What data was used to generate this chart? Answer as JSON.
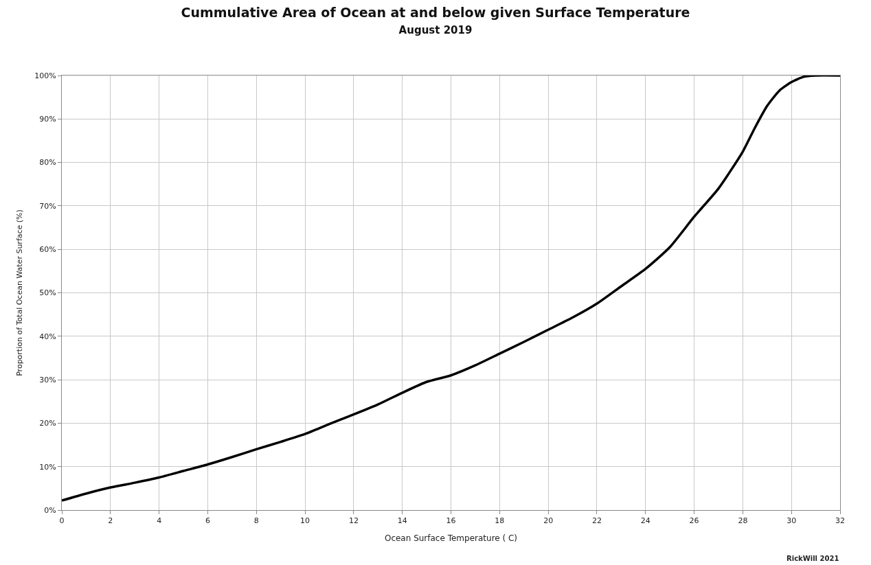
{
  "chart_data": {
    "type": "line",
    "title": "Cummulative Area of Ocean at and below given Surface Temperature",
    "subtitle": "August 2019",
    "xlabel": "Ocean Surface Temperature ( C)",
    "ylabel": "Proportion of Total Ocean Water Surface (%)",
    "x": [
      0,
      1,
      2,
      3,
      4,
      5,
      6,
      7,
      8,
      9,
      10,
      11,
      12,
      13,
      14,
      15,
      16,
      17,
      18,
      19,
      20,
      21,
      22,
      23,
      24,
      25,
      26,
      27,
      28,
      28.5,
      29,
      29.5,
      30,
      30.5,
      31,
      32
    ],
    "series": [
      {
        "color": "#000000",
        "values": [
          2.2,
          3.8,
          5.2,
          6.3,
          7.5,
          9,
          10.5,
          12.2,
          14,
          15.7,
          17.5,
          19.8,
          22,
          24.3,
          27,
          29.5,
          31,
          33.3,
          36,
          38.7,
          41.5,
          44.3,
          47.5,
          51.5,
          55.5,
          60.5,
          67.5,
          74,
          82.5,
          88,
          93,
          96.5,
          98.5,
          99.7,
          100,
          100
        ]
      }
    ],
    "xlim": [
      0,
      32
    ],
    "xticks": [
      0,
      2,
      4,
      6,
      8,
      10,
      12,
      14,
      16,
      18,
      20,
      22,
      24,
      26,
      28,
      30,
      32
    ],
    "ylim": [
      0,
      100
    ],
    "yticks": [
      {
        "value": 0,
        "label": "0%"
      },
      {
        "value": 10,
        "label": "10%"
      },
      {
        "value": 20,
        "label": "20%"
      },
      {
        "value": 30,
        "label": "30%"
      },
      {
        "value": 40,
        "label": "40%"
      },
      {
        "value": 50,
        "label": "50%"
      },
      {
        "value": 60,
        "label": "60%"
      },
      {
        "value": 70,
        "label": "70%"
      },
      {
        "value": 80,
        "label": "80%"
      },
      {
        "value": 90,
        "label": "90%"
      },
      {
        "value": 100,
        "label": "100%"
      }
    ],
    "grid": true,
    "marker": "none",
    "line_style": "solid",
    "annotations": [
      "RickWill 2021"
    ]
  }
}
